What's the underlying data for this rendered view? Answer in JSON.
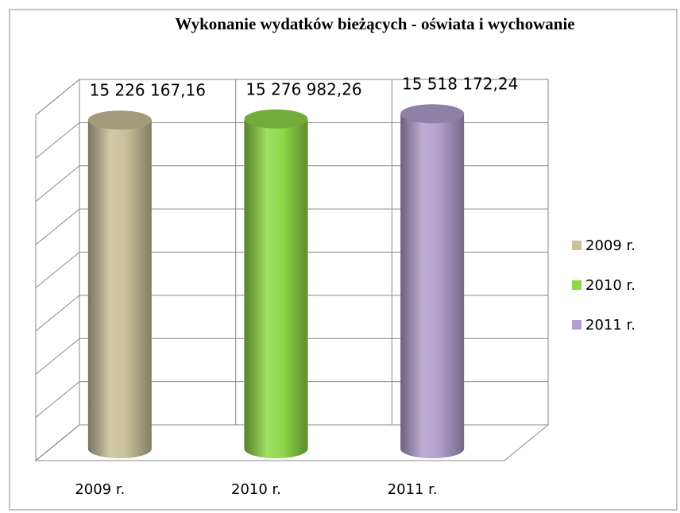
{
  "chart_data": {
    "type": "bar3d",
    "title": "Wykonanie wydatków bieżących - oświata i wychowanie",
    "categories": [
      "2009 r.",
      "2010 r.",
      "2011 r."
    ],
    "series": [
      {
        "name": "2009 r.",
        "color": "#c8c199"
      },
      {
        "name": "2010 r.",
        "color": "#8fd84a"
      },
      {
        "name": "2011 r.",
        "color": "#b3a0cf"
      }
    ],
    "values": [
      15226167.16,
      15276982.26,
      15518172.24
    ],
    "value_labels": [
      "15 226 167,16",
      "15 276 982,26",
      "15 518 172,24"
    ],
    "ylim": [
      0,
      16000000
    ],
    "yticks": [
      0,
      2000000,
      4000000,
      6000000,
      8000000,
      10000000,
      12000000,
      14000000,
      16000000
    ],
    "grid": true,
    "legend": "right"
  }
}
